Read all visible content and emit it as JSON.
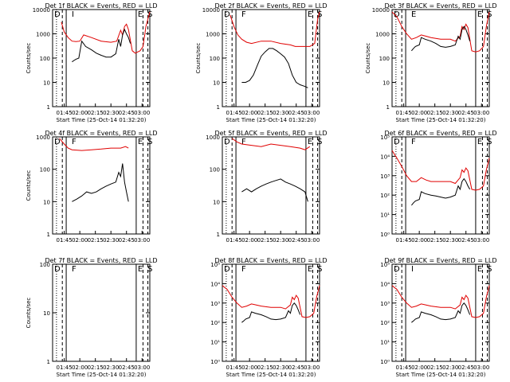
{
  "layout_note": "",
  "chart_data": [
    {
      "type": "line",
      "title": "Det 1f BLACK = Events, RED = LLD",
      "ylabel": "Counts/sec",
      "xlabel": "Start Time (25-Oct-14 01:32:20)",
      "yscale": "log",
      "ylim": [
        1,
        10000
      ],
      "yticks": [
        "1",
        "10",
        "100",
        "1000",
        "10000"
      ],
      "xticks": [
        "01:45",
        "02:00",
        "02:15",
        "02:30",
        "02:45",
        "03:00"
      ],
      "markers": [
        "D",
        "I",
        "E",
        "S"
      ],
      "series": [
        {
          "name": "LLD",
          "color": "#e00000",
          "x": [
            0.09,
            0.12,
            0.16,
            0.2,
            0.24,
            0.28,
            0.32,
            0.4,
            0.5,
            0.6,
            0.66,
            0.7,
            0.72,
            0.74,
            0.76,
            0.78,
            0.82,
            0.85,
            0.9,
            0.93,
            0.96,
            1.0
          ],
          "y": [
            3000,
            1200,
            700,
            500,
            480,
            500,
            900,
            700,
            500,
            450,
            500,
            1400,
            900,
            2000,
            2500,
            1500,
            200,
            160,
            200,
            300,
            2000,
            8000
          ]
        },
        {
          "name": "Events",
          "color": "#000000",
          "x": [
            0.2,
            0.22,
            0.24,
            0.27,
            0.3,
            0.34,
            0.4,
            0.45,
            0.5,
            0.55,
            0.6,
            0.65,
            0.68,
            0.7,
            0.72,
            0.74,
            0.76,
            0.78,
            0.8
          ],
          "y": [
            70,
            80,
            90,
            100,
            500,
            300,
            220,
            160,
            130,
            110,
            110,
            150,
            600,
            300,
            900,
            1500,
            1000,
            700,
            400
          ]
        }
      ]
    },
    {
      "type": "line",
      "title": "Det 2f BLACK = Events, RED = LLD",
      "ylabel": "Counts/sec",
      "xlabel": "Start Time (25-Oct-14 01:32:20)",
      "yscale": "log",
      "ylim": [
        1,
        10000
      ],
      "yticks": [
        "1",
        "10",
        "100",
        "1000",
        "10000"
      ],
      "xticks": [
        "01:45",
        "02:00",
        "02:15",
        "02:30",
        "02:45",
        "03:00"
      ],
      "markers": [
        "D",
        "F",
        "E",
        "S"
      ],
      "series": [
        {
          "name": "LLD",
          "color": "#e00000",
          "x": [
            0.08,
            0.12,
            0.16,
            0.2,
            0.25,
            0.3,
            0.4,
            0.5,
            0.6,
            0.7,
            0.75,
            0.8,
            0.86,
            0.9,
            0.95,
            0.98,
            1.0
          ],
          "y": [
            6000,
            2000,
            900,
            600,
            450,
            400,
            500,
            500,
            400,
            350,
            300,
            300,
            300,
            300,
            400,
            4000,
            8000
          ]
        },
        {
          "name": "Events",
          "color": "#000000",
          "x": [
            0.2,
            0.24,
            0.28,
            0.32,
            0.36,
            0.4,
            0.44,
            0.48,
            0.52,
            0.56,
            0.6,
            0.64,
            0.68,
            0.72,
            0.76,
            0.8,
            0.84,
            0.88
          ],
          "y": [
            10,
            10,
            12,
            20,
            50,
            120,
            180,
            250,
            250,
            200,
            150,
            110,
            60,
            20,
            10,
            8,
            7,
            6
          ]
        }
      ]
    },
    {
      "type": "line",
      "title": "Det 3f BLACK = Events, RED = LLD",
      "ylabel": "Counts/sec",
      "xlabel": "Start Time (25-Oct-14 01:32:20)",
      "yscale": "log",
      "ylim": [
        1,
        10000
      ],
      "yticks": [
        "1",
        "10",
        "100",
        "1000",
        "10000"
      ],
      "xticks": [
        "01:45",
        "02:00",
        "02:15",
        "02:30",
        "02:45",
        "03:00"
      ],
      "markers": [
        "D",
        "E",
        "E",
        "S"
      ],
      "series": [
        {
          "name": "LLD",
          "color": "#e00000",
          "x": [
            0.0,
            0.05,
            0.1,
            0.15,
            0.2,
            0.25,
            0.3,
            0.35,
            0.4,
            0.5,
            0.6,
            0.65,
            0.7,
            0.72,
            0.74,
            0.76,
            0.78,
            0.82,
            0.86,
            0.9,
            0.94,
            0.97,
            1.0
          ],
          "y": [
            8000,
            5000,
            2000,
            1000,
            600,
            700,
            900,
            800,
            700,
            600,
            600,
            500,
            800,
            2000,
            1500,
            2500,
            1800,
            200,
            180,
            200,
            300,
            2000,
            8000
          ]
        },
        {
          "name": "Events",
          "color": "#000000",
          "x": [
            0.2,
            0.22,
            0.24,
            0.28,
            0.3,
            0.34,
            0.4,
            0.45,
            0.5,
            0.55,
            0.6,
            0.65,
            0.68,
            0.7,
            0.72,
            0.74,
            0.76,
            0.78,
            0.8
          ],
          "y": [
            200,
            250,
            300,
            350,
            700,
            600,
            500,
            400,
            300,
            280,
            300,
            350,
            800,
            600,
            1500,
            2000,
            1500,
            900,
            500
          ]
        }
      ]
    },
    {
      "type": "line",
      "title": "Det 4f BLACK = Events, RED = LLD",
      "ylabel": "Counts/sec",
      "xlabel": "",
      "yscale": "log",
      "ylim": [
        1,
        1000
      ],
      "yticks": [
        "1",
        "10",
        "100",
        "1000"
      ],
      "xticks": [
        "01:45",
        "02:00",
        "02:15",
        "02:30",
        "02:45",
        "03:00"
      ],
      "markers": [
        "D",
        "F",
        "E",
        "S"
      ],
      "series": [
        {
          "name": "LLD",
          "color": "#e00000",
          "x": [
            0.07,
            0.12,
            0.16,
            0.2,
            0.3,
            0.4,
            0.5,
            0.6,
            0.7,
            0.75,
            0.78
          ],
          "y": [
            900,
            600,
            450,
            400,
            380,
            400,
            420,
            450,
            450,
            500,
            450
          ]
        },
        {
          "name": "Events",
          "color": "#000000",
          "x": [
            0.2,
            0.25,
            0.3,
            0.35,
            0.4,
            0.45,
            0.5,
            0.55,
            0.6,
            0.65,
            0.68,
            0.7,
            0.72,
            0.74,
            0.76,
            0.78
          ],
          "y": [
            10,
            12,
            15,
            20,
            18,
            20,
            25,
            30,
            35,
            40,
            80,
            60,
            150,
            40,
            20,
            10
          ]
        }
      ]
    },
    {
      "type": "line",
      "title": "Det 5f BLACK = Events, RED = LLD",
      "ylabel": "",
      "xlabel": "",
      "yscale": "log",
      "ylim": [
        1,
        1000
      ],
      "yticks": [
        "1",
        "10",
        "100",
        "1000"
      ],
      "xticks": [
        "01:45",
        "02:00",
        "02:15",
        "02:30",
        "02:45",
        "03:00"
      ],
      "markers": [
        "D",
        "F",
        "E",
        "S"
      ],
      "series": [
        {
          "name": "LLD",
          "color": "#e00000",
          "x": [
            0.1,
            0.15,
            0.2,
            0.3,
            0.4,
            0.5,
            0.6,
            0.7,
            0.8,
            0.85,
            0.9
          ],
          "y": [
            900,
            700,
            600,
            550,
            500,
            600,
            550,
            500,
            450,
            400,
            500
          ]
        },
        {
          "name": "Events",
          "color": "#000000",
          "x": [
            0.2,
            0.25,
            0.3,
            0.35,
            0.4,
            0.45,
            0.5,
            0.55,
            0.6,
            0.65,
            0.7,
            0.75,
            0.8,
            0.85,
            0.88
          ],
          "y": [
            20,
            25,
            20,
            25,
            30,
            35,
            40,
            45,
            50,
            40,
            35,
            30,
            25,
            20,
            10
          ]
        }
      ]
    },
    {
      "type": "line",
      "title": "Det 6f BLACK = Events, RED = LLD",
      "ylabel": "",
      "xlabel": "",
      "yscale": "log",
      "ylim": [
        1,
        100000
      ],
      "yticks": [
        "10⁰",
        "10¹",
        "10²",
        "10³",
        "10⁴",
        "10⁵"
      ],
      "xticks": [
        "01:45",
        "02:00",
        "02:15",
        "02:30",
        "02:45",
        "03:00"
      ],
      "markers": [
        "D",
        "F",
        "E",
        "S"
      ],
      "series": [
        {
          "name": "LLD",
          "color": "#e00000",
          "x": [
            0.0,
            0.05,
            0.1,
            0.15,
            0.2,
            0.25,
            0.3,
            0.35,
            0.4,
            0.5,
            0.6,
            0.65,
            0.7,
            0.72,
            0.74,
            0.76,
            0.78,
            0.82,
            0.86,
            0.9,
            0.94,
            0.97,
            1.0
          ],
          "y": [
            20000,
            8000,
            3000,
            1000,
            500,
            500,
            800,
            600,
            500,
            500,
            500,
            400,
            800,
            2000,
            1500,
            2500,
            1800,
            200,
            180,
            200,
            300,
            2000,
            8000
          ]
        },
        {
          "name": "Events",
          "color": "#000000",
          "x": [
            0.2,
            0.22,
            0.24,
            0.28,
            0.3,
            0.34,
            0.4,
            0.45,
            0.5,
            0.55,
            0.6,
            0.65,
            0.68,
            0.7,
            0.72,
            0.74,
            0.76,
            0.78,
            0.8
          ],
          "y": [
            30,
            40,
            50,
            60,
            150,
            120,
            100,
            90,
            80,
            70,
            80,
            100,
            300,
            200,
            500,
            700,
            500,
            300,
            200
          ]
        }
      ]
    },
    {
      "type": "line",
      "title": "Det 7f BLACK = Events, RED = LLD",
      "ylabel": "Counts/sec",
      "xlabel": "Start Time (25-Oct-14 01:32:20)",
      "yscale": "log",
      "ylim": [
        1,
        100
      ],
      "yticks": [
        "1",
        "10",
        "100"
      ],
      "xticks": [
        "01:45",
        "02:00",
        "02:15",
        "02:30",
        "02:45",
        "03:00"
      ],
      "markers": [
        "D",
        "F",
        "E",
        "S"
      ],
      "series": []
    },
    {
      "type": "line",
      "title": "Det 8f BLACK = Events, RED = LLD",
      "ylabel": "",
      "xlabel": "Start Time (25-Oct-14 01:32:20)",
      "yscale": "log",
      "ylim": [
        1,
        100000
      ],
      "yticks": [
        "10⁰",
        "10¹",
        "10²",
        "10³",
        "10⁴",
        "10⁵"
      ],
      "xticks": [
        "01:45",
        "02:00",
        "02:15",
        "02:30",
        "02:45",
        "03:00"
      ],
      "markers": [
        "D",
        "F",
        "E",
        "S"
      ],
      "series": [
        {
          "name": "LLD",
          "color": "#e00000",
          "x": [
            0.0,
            0.05,
            0.1,
            0.15,
            0.2,
            0.25,
            0.3,
            0.35,
            0.4,
            0.5,
            0.6,
            0.65,
            0.7,
            0.72,
            0.74,
            0.76,
            0.78,
            0.82,
            0.86,
            0.9,
            0.94,
            0.97,
            1.0
          ],
          "y": [
            8000,
            5000,
            2000,
            1000,
            600,
            700,
            900,
            800,
            700,
            600,
            600,
            500,
            800,
            2000,
            1500,
            2500,
            1800,
            200,
            180,
            200,
            300,
            2000,
            8000
          ]
        },
        {
          "name": "Events",
          "color": "#000000",
          "x": [
            0.2,
            0.22,
            0.24,
            0.28,
            0.3,
            0.34,
            0.4,
            0.45,
            0.5,
            0.55,
            0.6,
            0.65,
            0.68,
            0.7,
            0.72,
            0.74,
            0.76,
            0.78,
            0.8
          ],
          "y": [
            100,
            120,
            150,
            180,
            350,
            300,
            250,
            200,
            150,
            140,
            150,
            180,
            400,
            300,
            750,
            1000,
            750,
            450,
            250
          ]
        }
      ]
    },
    {
      "type": "line",
      "title": "Det 9f BLACK = Events, RED = LLD",
      "ylabel": "",
      "xlabel": "Start Time (25-Oct-14 01:32:20)",
      "yscale": "log",
      "ylim": [
        1,
        100000
      ],
      "yticks": [
        "10⁰",
        "10¹",
        "10²",
        "10³",
        "10⁴",
        "10⁵"
      ],
      "xticks": [
        "01:45",
        "02:00",
        "02:15",
        "02:30",
        "02:45",
        "03:00"
      ],
      "markers": [
        "D",
        "I",
        "E",
        "S"
      ],
      "series": [
        {
          "name": "LLD",
          "color": "#e00000",
          "x": [
            0.0,
            0.05,
            0.1,
            0.15,
            0.2,
            0.25,
            0.3,
            0.35,
            0.4,
            0.5,
            0.6,
            0.65,
            0.7,
            0.72,
            0.74,
            0.76,
            0.78,
            0.82,
            0.86,
            0.9,
            0.94,
            0.97,
            1.0
          ],
          "y": [
            8000,
            5000,
            2000,
            1000,
            600,
            700,
            900,
            800,
            700,
            600,
            600,
            500,
            800,
            2000,
            1500,
            2500,
            1800,
            200,
            180,
            200,
            300,
            2000,
            8000
          ]
        },
        {
          "name": "Events",
          "color": "#000000",
          "x": [
            0.2,
            0.22,
            0.24,
            0.28,
            0.3,
            0.34,
            0.4,
            0.45,
            0.5,
            0.55,
            0.6,
            0.65,
            0.68,
            0.7,
            0.72,
            0.74,
            0.76,
            0.78,
            0.8
          ],
          "y": [
            100,
            120,
            150,
            180,
            350,
            300,
            250,
            200,
            150,
            140,
            150,
            180,
            400,
            300,
            750,
            1000,
            750,
            450,
            250
          ]
        }
      ]
    }
  ]
}
